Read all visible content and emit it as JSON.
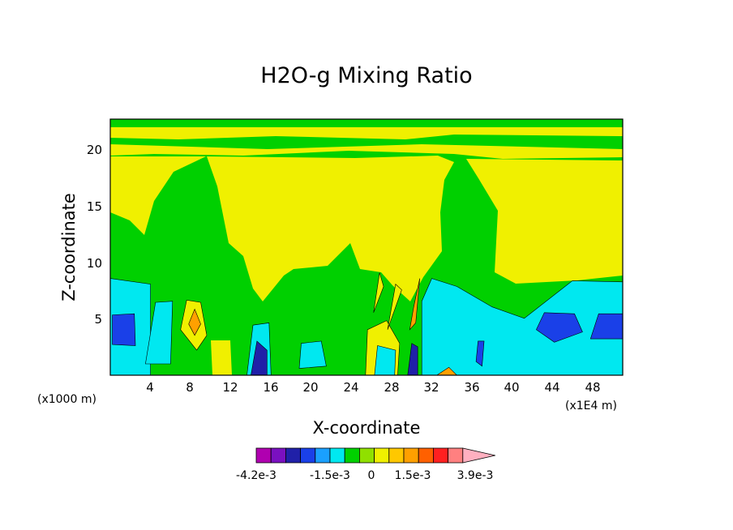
{
  "chart_data": {
    "type": "heatmap",
    "title": "H2O-g Mixing Ratio",
    "xlabel": "X-coordinate",
    "ylabel": "Z-coordinate",
    "x_ticks": [
      "4",
      "8",
      "12",
      "16",
      "20",
      "24",
      "28",
      "32",
      "36",
      "40",
      "44",
      "48"
    ],
    "y_ticks": [
      "5",
      "10",
      "15",
      "20"
    ],
    "x_unit_left": "(x1000 m)",
    "x_unit_right": "(x1E4 m)",
    "xlim": [
      0,
      51
    ],
    "ylim": [
      0,
      22.5
    ],
    "colorbar": {
      "colors": [
        "#b000b0",
        "#7a10c0",
        "#2020a8",
        "#1a40e8",
        "#1aa0ff",
        "#00e8f0",
        "#00d000",
        "#90e000",
        "#f0f000",
        "#ffc800",
        "#ffa000",
        "#ff6000",
        "#ff2020",
        "#ff8080",
        "#ffb0c0"
      ],
      "labels": [
        "-4.2e-3",
        "-1.5e-3",
        "0",
        "1.5e-3",
        "3.9e-3"
      ]
    },
    "regions": [
      {
        "level": "cyan",
        "points": [
          [
            0,
            0
          ],
          [
            4,
            0
          ],
          [
            4,
            8
          ],
          [
            0,
            8.5
          ]
        ]
      },
      {
        "level": "blue",
        "points": [
          [
            0.2,
            2.7
          ],
          [
            2.5,
            2.6
          ],
          [
            2.4,
            5.4
          ],
          [
            0.2,
            5.3
          ]
        ]
      },
      {
        "level": "cyan",
        "points": [
          [
            3.5,
            1
          ],
          [
            6,
            1
          ],
          [
            6.2,
            6.5
          ],
          [
            4.5,
            6.4
          ]
        ]
      },
      {
        "level": "yellow",
        "points": [
          [
            7,
            4
          ],
          [
            8.6,
            2.2
          ],
          [
            9.6,
            3.5
          ],
          [
            9,
            6.4
          ],
          [
            7.6,
            6.6
          ]
        ]
      },
      {
        "level": "orange",
        "points": [
          [
            7.8,
            4.5
          ],
          [
            8.4,
            3.5
          ],
          [
            9,
            4.5
          ],
          [
            8.4,
            5.8
          ]
        ]
      },
      {
        "level": "cyan",
        "points": [
          [
            13.6,
            0
          ],
          [
            16,
            0
          ],
          [
            15.8,
            4.6
          ],
          [
            14.2,
            4.4
          ]
        ]
      },
      {
        "level": "navy",
        "points": [
          [
            14,
            0
          ],
          [
            15.6,
            0
          ],
          [
            15.6,
            2.2
          ],
          [
            14.6,
            3
          ]
        ]
      },
      {
        "level": "cyan",
        "points": [
          [
            18.8,
            0.6
          ],
          [
            21.5,
            0.8
          ],
          [
            21,
            3
          ],
          [
            19,
            2.8
          ]
        ]
      },
      {
        "level": "yellow",
        "points": [
          [
            25.4,
            0
          ],
          [
            28.6,
            0
          ],
          [
            28.8,
            2.8
          ],
          [
            27.5,
            4.8
          ],
          [
            25.6,
            4
          ]
        ]
      },
      {
        "level": "cyan",
        "points": [
          [
            26.3,
            0
          ],
          [
            28.3,
            0
          ],
          [
            28.4,
            2.2
          ],
          [
            26.6,
            2.6
          ]
        ]
      },
      {
        "level": "yellow",
        "points": [
          [
            26.2,
            5.5
          ],
          [
            27.2,
            7.8
          ],
          [
            26.8,
            9
          ]
        ]
      },
      {
        "level": "yellow",
        "points": [
          [
            27.6,
            4
          ],
          [
            29,
            7.5
          ],
          [
            28.4,
            8
          ]
        ]
      },
      {
        "level": "orange",
        "points": [
          [
            29.8,
            4
          ],
          [
            30.2,
            6
          ],
          [
            30.8,
            8.5
          ],
          [
            30.4,
            4.6
          ]
        ]
      },
      {
        "level": "cyan",
        "points": [
          [
            31,
            0
          ],
          [
            51,
            0
          ],
          [
            51,
            8.2
          ],
          [
            46,
            8.3
          ],
          [
            41.2,
            5
          ],
          [
            38,
            6
          ],
          [
            34.5,
            7.8
          ],
          [
            32,
            8.5
          ],
          [
            31,
            6.5
          ]
        ]
      },
      {
        "level": "navy",
        "points": [
          [
            29.6,
            0
          ],
          [
            30.6,
            0
          ],
          [
            30.6,
            2.5
          ],
          [
            30,
            2.8
          ]
        ]
      },
      {
        "level": "blue",
        "points": [
          [
            42.4,
            4
          ],
          [
            44.2,
            2.9
          ],
          [
            47,
            3.8
          ],
          [
            46.2,
            5.4
          ],
          [
            43.2,
            5.5
          ]
        ]
      },
      {
        "level": "blue",
        "points": [
          [
            47.8,
            3.2
          ],
          [
            51,
            3.2
          ],
          [
            51,
            5.4
          ],
          [
            48.6,
            5.4
          ]
        ]
      },
      {
        "level": "blue",
        "points": [
          [
            36.4,
            1.2
          ],
          [
            37,
            0.8
          ],
          [
            37.2,
            3
          ],
          [
            36.6,
            3
          ]
        ]
      },
      {
        "level": "orange",
        "points": [
          [
            32.5,
            0
          ],
          [
            34.5,
            0
          ],
          [
            33.7,
            0.7
          ]
        ]
      }
    ]
  }
}
